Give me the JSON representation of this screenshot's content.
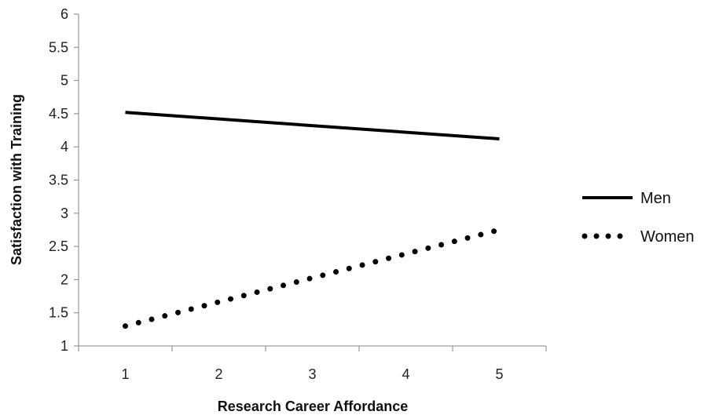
{
  "chart_data": {
    "type": "line",
    "xlabel": "Research Career Affordance",
    "ylabel": "Satisfaction with Training",
    "categories": [
      "1",
      "2",
      "3",
      "4",
      "5"
    ],
    "x": [
      1,
      5
    ],
    "ylim": [
      1,
      6
    ],
    "yticks": [
      "1",
      "1.5",
      "2",
      "2.5",
      "3",
      "3.5",
      "4",
      "4.5",
      "5",
      "5.5",
      "6"
    ],
    "grid": false,
    "legend": "right",
    "series": [
      {
        "name": "Men",
        "values": [
          4.52,
          4.12
        ],
        "style": "solid",
        "color": "#000000"
      },
      {
        "name": "Women",
        "values": [
          1.3,
          2.75
        ],
        "style": "dotted",
        "color": "#000000"
      }
    ]
  }
}
